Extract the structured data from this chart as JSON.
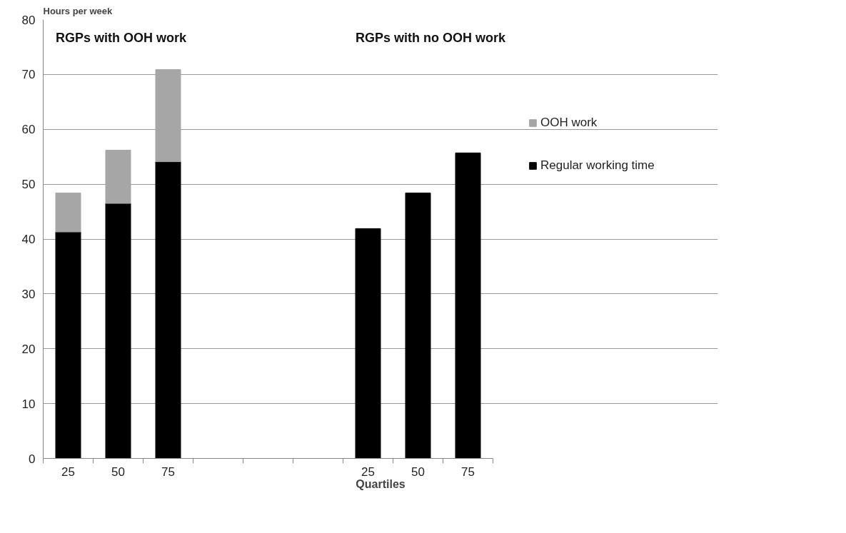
{
  "chart_data": {
    "type": "bar",
    "stacked": true,
    "ylabel": "Hours per week",
    "xlabel": "Quartiles",
    "categories": [
      "25",
      "50",
      "75",
      null,
      null,
      null,
      "25",
      "50",
      "75"
    ],
    "series": [
      {
        "name": "Regular working time",
        "color": "#000000",
        "values": [
          41.3,
          46.5,
          54.1,
          null,
          null,
          null,
          41.9,
          48.4,
          55.7
        ]
      },
      {
        "name": "OOH work",
        "color": "#a6a6a6",
        "values": [
          7.1,
          9.7,
          16.8,
          null,
          null,
          null,
          null,
          null,
          null
        ]
      }
    ],
    "annotations": [
      "RGPs with OOH work",
      "RGPs with no OOH work"
    ],
    "ylim": [
      0,
      80
    ],
    "yticks": [
      0,
      10,
      20,
      30,
      40,
      50,
      60,
      70,
      80
    ],
    "grid": "y",
    "legend": "right"
  }
}
